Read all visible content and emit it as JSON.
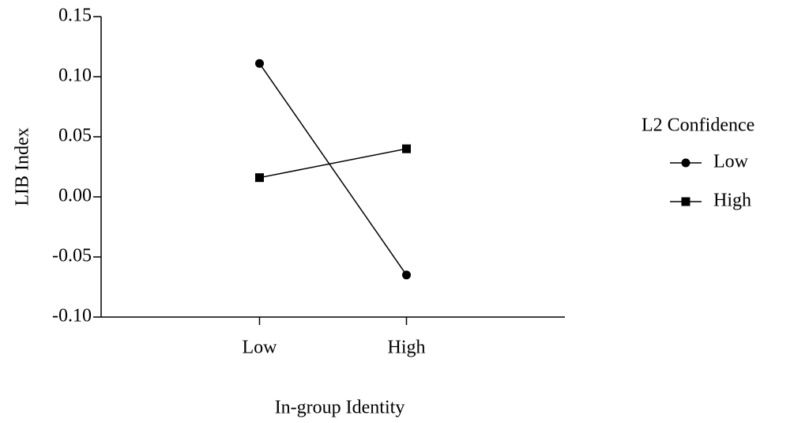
{
  "chart_data": {
    "type": "line",
    "xlabel": "In-group Identity",
    "ylabel": "LIB Index",
    "categories": [
      "Low",
      "High"
    ],
    "series": [
      {
        "name": "Low",
        "color": "#000000",
        "marker": "circle",
        "values": [
          0.111,
          -0.065
        ]
      },
      {
        "name": "High",
        "color": "#000000",
        "marker": "square",
        "values": [
          0.016,
          0.04
        ]
      }
    ],
    "ylim": [
      -0.1,
      0.15
    ],
    "yticks": [
      0.15,
      {
        "value": 0.1,
        "label": "0.10"
      },
      0.05,
      {
        "value": 0,
        "label": "0.00"
      },
      -0.05,
      {
        "value": -0.1,
        "label": "-0.10"
      }
    ],
    "legend": {
      "title": "L2 Confidence",
      "position": "right"
    }
  }
}
